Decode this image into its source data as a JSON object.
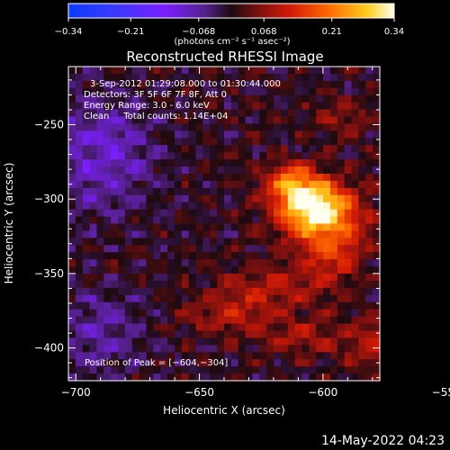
{
  "chart_data": {
    "type": "heatmap",
    "title": "Reconstructed RHESSI Image",
    "xlabel": "Heliocentric X (arcsec)",
    "ylabel": "Heliocentric Y (arcsec)",
    "xlim": [
      -703,
      -577
    ],
    "ylim": [
      -422,
      -211
    ],
    "xticks": [
      {
        "value": -700,
        "label": "−700"
      },
      {
        "value": -650,
        "label": "−650"
      },
      {
        "value": -600,
        "label": "−600"
      },
      {
        "value": -550,
        "label": "−550"
      }
    ],
    "yticks": [
      {
        "value": -250,
        "label": "−250"
      },
      {
        "value": -300,
        "label": "−300"
      },
      {
        "value": -350,
        "label": "−350"
      },
      {
        "value": -400,
        "label": "−400"
      }
    ],
    "colorbar": {
      "min": -0.34,
      "max": 0.34,
      "unit_label": "(photons cm⁻² s⁻¹ asec⁻²)",
      "ticks": [
        {
          "value": -0.34,
          "label": "−0.34"
        },
        {
          "value": -0.21,
          "label": "−0.21"
        },
        {
          "value": -0.068,
          "label": "−0.068"
        },
        {
          "value": 0.068,
          "label": "0.068"
        },
        {
          "value": 0.21,
          "label": "0.21"
        },
        {
          "value": 0.34,
          "label": "0.34"
        }
      ]
    },
    "annotations": [
      "3-Sep-2012 01:29:08.000 to 01:30:44.000",
      "Detectors: 3F 5F 6F 7F 8F, Att 0",
      "Energy Range: 3.0 - 6.0 keV",
      "Clean     Total counts: 1.14E+04"
    ],
    "peak_label": "Position of Peak = [−604,−304]",
    "peak": {
      "x": -604,
      "y": -304,
      "value": 0.34
    },
    "sources": [
      {
        "x": -604,
        "y": -304,
        "sx": 10,
        "sy": 12,
        "amp": 0.34
      },
      {
        "x": -614,
        "y": -288,
        "sx": 7,
        "sy": 9,
        "amp": 0.16
      },
      {
        "x": -598,
        "y": -322,
        "sx": 12,
        "sy": 14,
        "amp": 0.12
      },
      {
        "x": -596,
        "y": -340,
        "sx": 9,
        "sy": 10,
        "amp": 0.08
      },
      {
        "x": -618,
        "y": -360,
        "sx": 16,
        "sy": 10,
        "amp": 0.1
      },
      {
        "x": -640,
        "y": -378,
        "sx": 12,
        "sy": 9,
        "amp": 0.09
      },
      {
        "x": -612,
        "y": -392,
        "sx": 12,
        "sy": 9,
        "amp": 0.08
      },
      {
        "x": -575,
        "y": -392,
        "sx": 13,
        "sy": 9,
        "amp": 0.08
      },
      {
        "x": -592,
        "y": -246,
        "sx": 9,
        "sy": 9,
        "amp": 0.06
      },
      {
        "x": -550,
        "y": -290,
        "sx": 14,
        "sy": 22,
        "amp": 0.1
      },
      {
        "x": -576,
        "y": -405,
        "sx": 10,
        "sy": 8,
        "amp": 0.06
      },
      {
        "x": -690,
        "y": -270,
        "sx": 16,
        "sy": 26,
        "amp": -0.1
      },
      {
        "x": -690,
        "y": -390,
        "sx": 14,
        "sy": 20,
        "amp": -0.07
      },
      {
        "x": -545,
        "y": -360,
        "sx": 12,
        "sy": 16,
        "amp": -0.06
      }
    ]
  },
  "footer_timestamp": "14-May-2022 04:23"
}
